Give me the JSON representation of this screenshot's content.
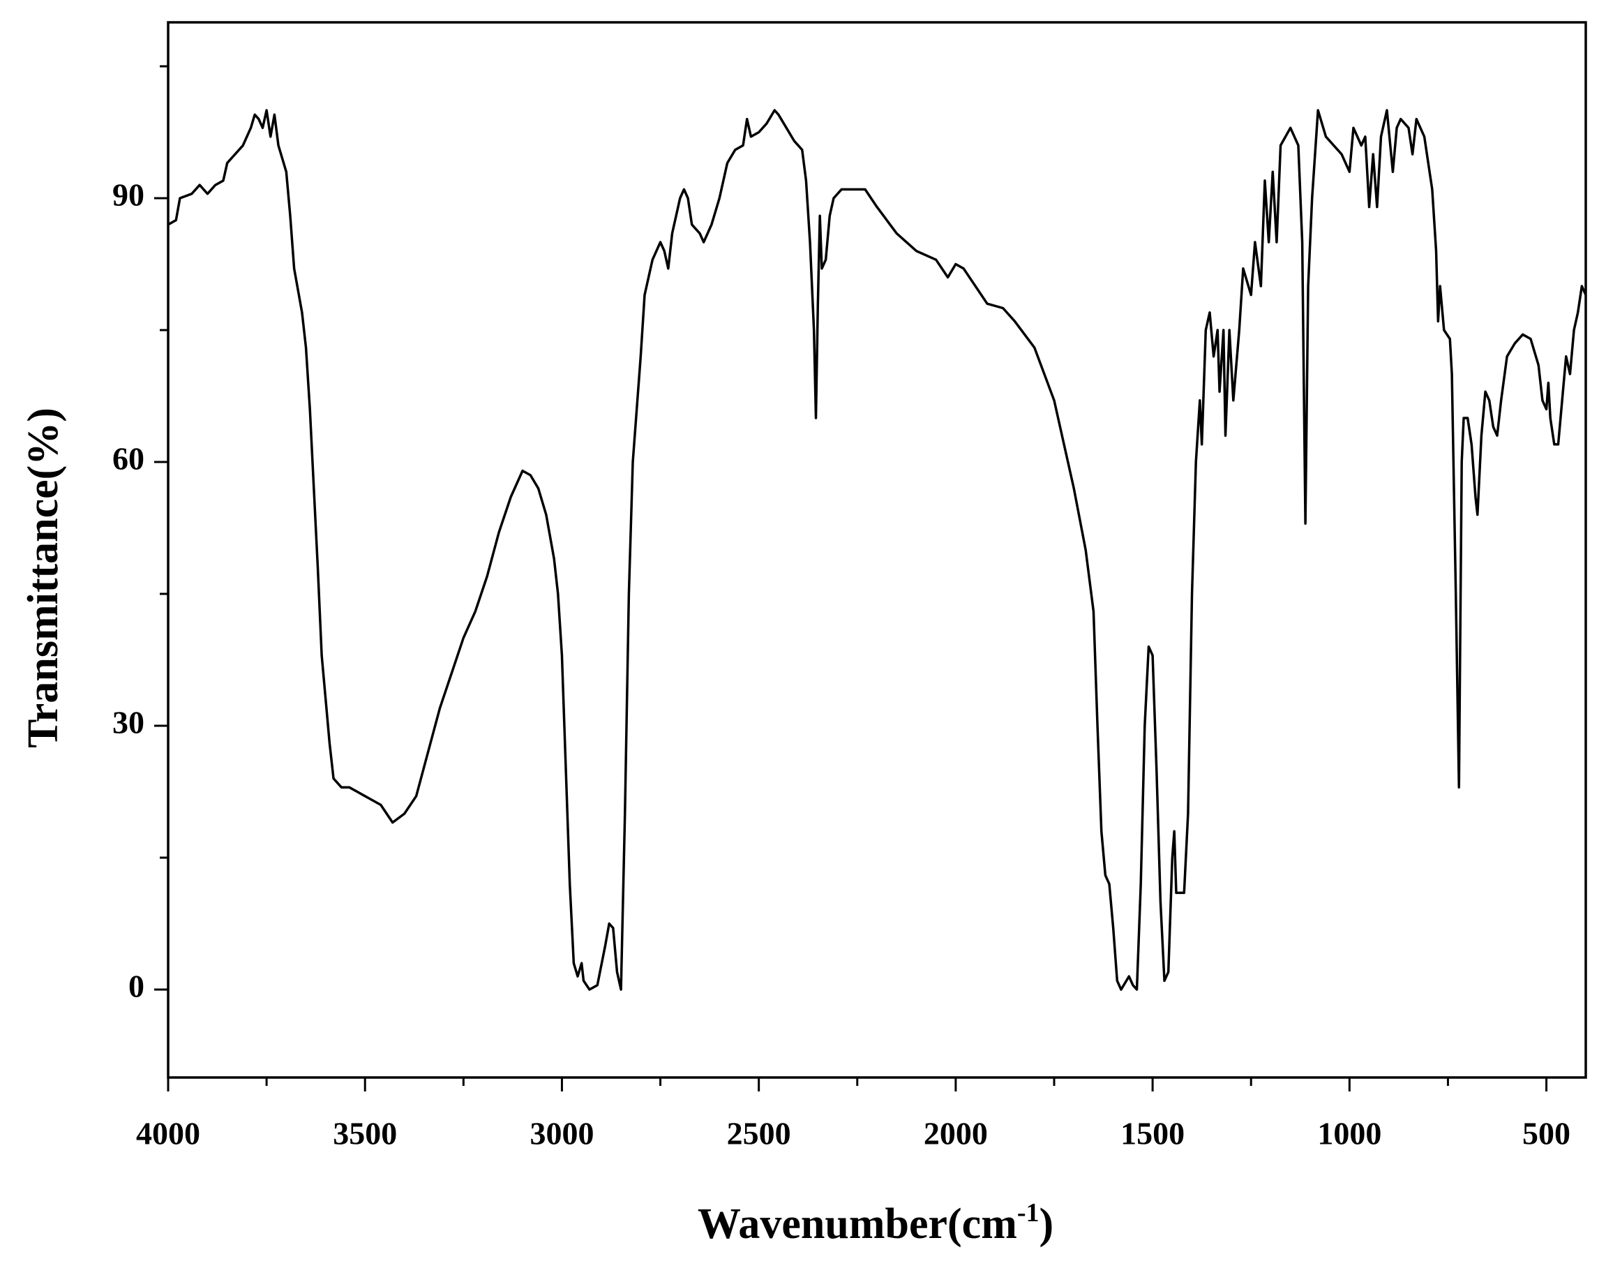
{
  "chart_data": {
    "type": "line",
    "ylabel": "Transmittance(%)",
    "xlabel": {
      "text": "Wavenumber(cm",
      "superscript": "-1",
      "end": ")"
    },
    "color": "#000000",
    "xlim": [
      4000,
      400
    ],
    "xticks": [
      4000,
      3500,
      3000,
      2500,
      2000,
      1500,
      1000,
      500
    ],
    "xminorticks": [
      3750,
      3250,
      2750,
      2250,
      1750,
      1250,
      750
    ],
    "ylim": [
      -10,
      110
    ],
    "yticks": [
      0,
      30,
      60,
      90
    ],
    "yminorticks": [
      15,
      45,
      75,
      105
    ],
    "x": [
      4000,
      3980,
      3970,
      3940,
      3920,
      3900,
      3880,
      3860,
      3850,
      3830,
      3810,
      3790,
      3780,
      3770,
      3760,
      3750,
      3740,
      3730,
      3720,
      3700,
      3690,
      3680,
      3660,
      3650,
      3640,
      3630,
      3620,
      3610,
      3600,
      3590,
      3580,
      3560,
      3540,
      3500,
      3460,
      3430,
      3400,
      3370,
      3340,
      3310,
      3280,
      3250,
      3220,
      3190,
      3160,
      3130,
      3100,
      3080,
      3060,
      3040,
      3020,
      3010,
      3000,
      2990,
      2980,
      2970,
      2960,
      2950,
      2945,
      2930,
      2910,
      2890,
      2880,
      2870,
      2860,
      2850,
      2840,
      2830,
      2820,
      2800,
      2790,
      2770,
      2750,
      2740,
      2730,
      2720,
      2700,
      2690,
      2680,
      2670,
      2650,
      2640,
      2620,
      2600,
      2580,
      2560,
      2540,
      2530,
      2520,
      2500,
      2480,
      2460,
      2450,
      2430,
      2410,
      2390,
      2380,
      2370,
      2360,
      2355,
      2350,
      2345,
      2340,
      2330,
      2320,
      2310,
      2290,
      2260,
      2230,
      2200,
      2150,
      2100,
      2050,
      2020,
      2000,
      1980,
      1950,
      1920,
      1880,
      1850,
      1800,
      1750,
      1700,
      1670,
      1650,
      1640,
      1630,
      1620,
      1610,
      1600,
      1590,
      1580,
      1560,
      1550,
      1540,
      1530,
      1520,
      1510,
      1500,
      1490,
      1480,
      1470,
      1460,
      1450,
      1445,
      1440,
      1420,
      1410,
      1400,
      1390,
      1380,
      1375,
      1365,
      1355,
      1345,
      1335,
      1330,
      1320,
      1315,
      1305,
      1295,
      1280,
      1270,
      1250,
      1240,
      1225,
      1215,
      1205,
      1195,
      1185,
      1175,
      1150,
      1130,
      1120,
      1112,
      1105,
      1095,
      1080,
      1060,
      1040,
      1020,
      1000,
      990,
      970,
      960,
      950,
      940,
      930,
      920,
      905,
      890,
      880,
      870,
      850,
      840,
      830,
      810,
      790,
      780,
      775,
      770,
      760,
      745,
      740,
      730,
      722,
      715,
      710,
      700,
      690,
      680,
      675,
      665,
      655,
      645,
      635,
      625,
      615,
      600,
      580,
      560,
      540,
      520,
      510,
      500,
      495,
      490,
      480,
      470,
      460,
      450,
      440,
      430,
      420,
      410,
      400
    ],
    "values": [
      87,
      87.5,
      90,
      90.5,
      91.5,
      90.5,
      91.5,
      92,
      94,
      95,
      96,
      98,
      99.5,
      99,
      98,
      100,
      97,
      99.5,
      96,
      93,
      88,
      82,
      77,
      73,
      66,
      57,
      48,
      38,
      33,
      28,
      24,
      23,
      23,
      22,
      21,
      19,
      20,
      22,
      27,
      32,
      36,
      40,
      43,
      47,
      52,
      56,
      59,
      58.5,
      57,
      54,
      49,
      45,
      38,
      25,
      12,
      3,
      1.5,
      3,
      1,
      0,
      0.5,
      5,
      7.5,
      7,
      2,
      0,
      20,
      45,
      60,
      72,
      79,
      83,
      85,
      84,
      82,
      86,
      90,
      91,
      90,
      87,
      86,
      85,
      87,
      90,
      94,
      95.5,
      96,
      99,
      97,
      97.5,
      98.5,
      100,
      99.5,
      98,
      96.5,
      95.5,
      92,
      85,
      75,
      65,
      78,
      88,
      82,
      83,
      88,
      90,
      91,
      91,
      91,
      89,
      86,
      84,
      83,
      81,
      82.5,
      82,
      80,
      78,
      77.5,
      76,
      73,
      67,
      57,
      50,
      43,
      30,
      18,
      13,
      12,
      7,
      1,
      0,
      1.5,
      0.5,
      0,
      12,
      30,
      39,
      38,
      25,
      10,
      1,
      2,
      15,
      18,
      11,
      11,
      20,
      45,
      60,
      67,
      62,
      75,
      77,
      72,
      75,
      68,
      75,
      63,
      75,
      67,
      75,
      82,
      79,
      85,
      80,
      92,
      85,
      93,
      85,
      96,
      98,
      96,
      85,
      53,
      80,
      90,
      100,
      97,
      96,
      95,
      93,
      98,
      96,
      97,
      89,
      95,
      89,
      97,
      100,
      93,
      98,
      99,
      98,
      95,
      99,
      97,
      91,
      84,
      76,
      80,
      75,
      74,
      70,
      45,
      23,
      60,
      65,
      65,
      62,
      56,
      54,
      63,
      68,
      67,
      64,
      63,
      67,
      72,
      73.5,
      74.5,
      74,
      71,
      67,
      66,
      69,
      65,
      62,
      62,
      67,
      72,
      70,
      75,
      77,
      80,
      79
    ]
  }
}
